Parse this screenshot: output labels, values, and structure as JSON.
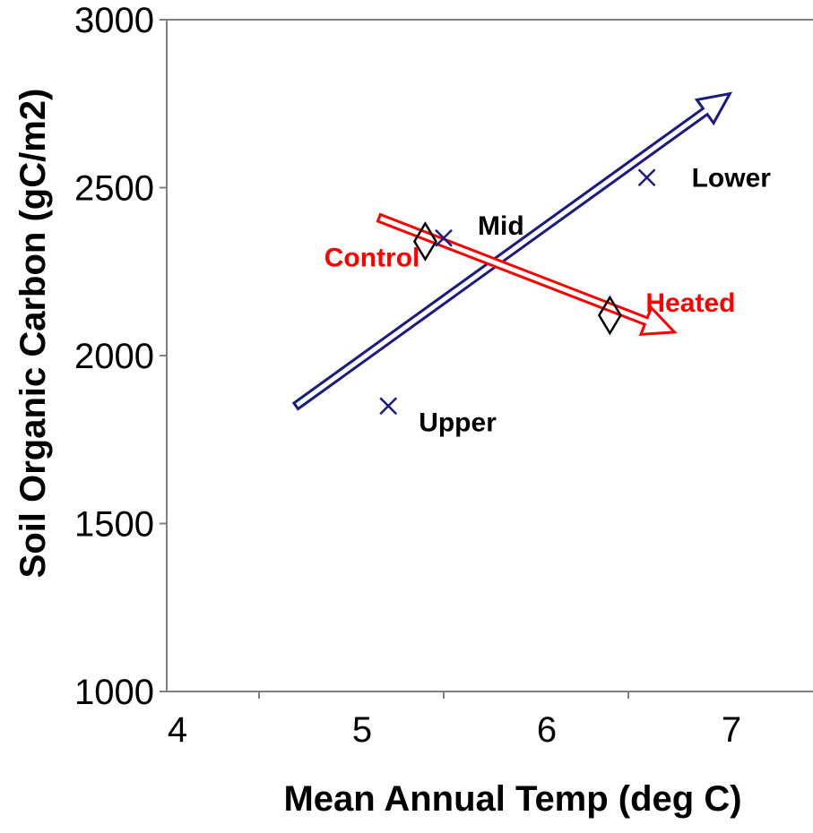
{
  "chart_data": {
    "type": "scatter",
    "title": "",
    "xlabel": "Mean Annual Temp (deg C)",
    "ylabel": "Soil Organic Carbon (gC/m2)",
    "xlim": [
      4,
      7.5
    ],
    "ylim": [
      1000,
      3000
    ],
    "x_ticks": [
      "4",
      "5",
      "6",
      "7"
    ],
    "y_ticks": [
      "1000",
      "1500",
      "2000",
      "2500",
      "3000"
    ],
    "grid": false,
    "legend": "none",
    "series": [
      {
        "marker": "x",
        "color": "#1a1a80",
        "points": [
          {
            "x": 5.2,
            "y": 1850,
            "label": "Upper"
          },
          {
            "x": 5.5,
            "y": 2350,
            "label": "Mid"
          },
          {
            "x": 6.6,
            "y": 2530,
            "label": "Lower"
          }
        ]
      },
      {
        "marker": "diamond",
        "color": "#000000",
        "points": [
          {
            "x": 5.4,
            "y": 2340,
            "label": "Control"
          },
          {
            "x": 6.4,
            "y": 2120,
            "label": "Heated"
          }
        ]
      }
    ],
    "annotations": [
      {
        "type": "arrow",
        "color": "#1a1a80",
        "from": [
          4.7,
          1850
        ],
        "to": [
          7.05,
          2780
        ]
      },
      {
        "type": "arrow",
        "color": "#ff0000",
        "from": [
          5.15,
          2410
        ],
        "to": [
          6.75,
          2070
        ]
      }
    ],
    "label_colors": {
      "Upper": "#000000",
      "Mid": "#000000",
      "Lower": "#000000",
      "Control": "#ff0000",
      "Heated": "#ff0000"
    }
  }
}
